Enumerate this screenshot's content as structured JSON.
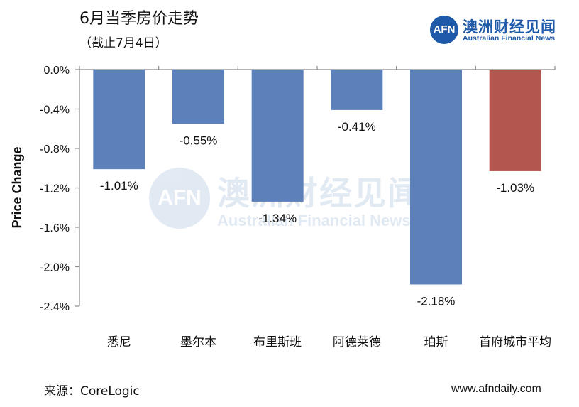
{
  "chart_data": {
    "type": "bar",
    "title": "6月当季房价走势",
    "subtitle": "（截止7月4日）",
    "ylabel": "Price Change",
    "xlabel": "",
    "categories": [
      "悉尼",
      "墨尔本",
      "布里斯班",
      "阿德莱德",
      "珀斯",
      "首府城市平均"
    ],
    "values": [
      -1.01,
      -0.55,
      -1.34,
      -0.41,
      -2.18,
      -1.03
    ],
    "value_labels": [
      "-1.01%",
      "-0.55%",
      "-1.34%",
      "-0.41%",
      "-2.18%",
      "-1.03%"
    ],
    "colors": [
      "#5b80ba",
      "#5b80ba",
      "#5b80ba",
      "#5b80ba",
      "#5b80ba",
      "#b3564f"
    ],
    "ylim": [
      -2.4,
      0
    ],
    "yticks": [
      0,
      -0.4,
      -0.8,
      -1.2,
      -1.6,
      -2.0,
      -2.4
    ],
    "ytick_labels": [
      "0.0%",
      "-0.4%",
      "-0.8%",
      "-1.2%",
      "-1.6%",
      "-2.0%",
      "-2.4%"
    ],
    "grid": false,
    "legend": "none"
  },
  "brand": {
    "logo_mark": "AFN",
    "name_cn": "澳洲财经见闻",
    "name_en": "Australian Financial News",
    "color": "#1f5aa8"
  },
  "footer": {
    "source": "来源：CoreLogic",
    "website": "www.afndaily.com"
  }
}
